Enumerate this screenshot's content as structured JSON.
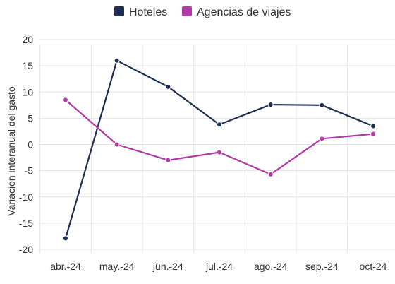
{
  "chart_data": {
    "type": "line",
    "categories": [
      "abr.-24",
      "may.-24",
      "jun.-24",
      "jul.-24",
      "ago.-24",
      "sep.-24",
      "oct-24"
    ],
    "series": [
      {
        "name": "Hoteles",
        "color": "#1f2d55",
        "values": [
          -17.9,
          16.0,
          11.0,
          3.8,
          7.6,
          7.5,
          3.5
        ]
      },
      {
        "name": "Agencias de viajes",
        "color": "#b23aa7",
        "values": [
          8.5,
          0.0,
          -3.0,
          -1.5,
          -5.7,
          1.1,
          2.0
        ]
      }
    ],
    "ylabel": "Variación interanual del gasto",
    "ylim": [
      -20,
      20
    ],
    "yticks": [
      20,
      15,
      10,
      5,
      0,
      -5,
      -10,
      -15,
      -20
    ],
    "grid": true,
    "legend_position": "top-center"
  }
}
